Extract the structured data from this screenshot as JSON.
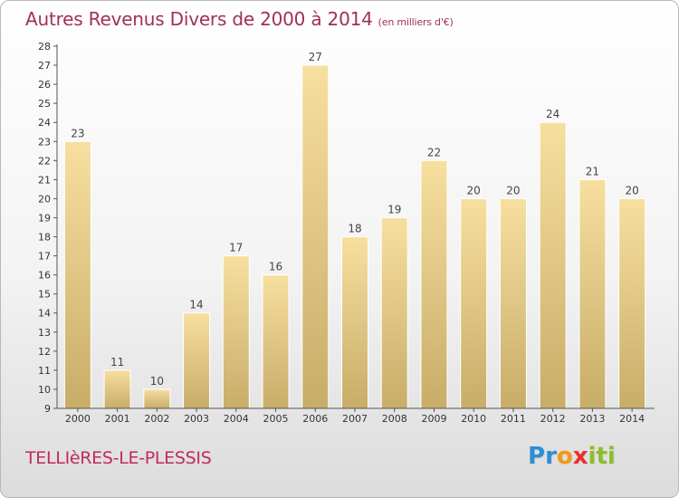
{
  "title": "Autres Revenus Divers de 2000 à 2014",
  "title_unit": "(en milliers d'€)",
  "commune": "TELLIèRES-LE-PLESSIS",
  "logo": {
    "letters": [
      "P",
      "r",
      "o",
      "x",
      "i",
      "t",
      "i"
    ],
    "colors": [
      "#2a8fd6",
      "#2a8fd6",
      "#f29a12",
      "#e8302a",
      "#8cbf26",
      "#8cbf26",
      "#8cbf26"
    ]
  },
  "colors": {
    "bar_top": "#f7dfa0",
    "bar_bottom": "#c8ad68",
    "title": "#a03058",
    "commune": "#c02c5a"
  },
  "chart_data": {
    "type": "bar",
    "title": "Autres Revenus Divers de 2000 à 2014",
    "categories": [
      "2000",
      "2001",
      "2002",
      "2003",
      "2004",
      "2005",
      "2006",
      "2007",
      "2008",
      "2009",
      "2010",
      "2011",
      "2012",
      "2013",
      "2014"
    ],
    "values": [
      23,
      11,
      10,
      14,
      17,
      16,
      27,
      18,
      19,
      22,
      20,
      20,
      24,
      21,
      20
    ],
    "ylim": [
      9,
      28
    ],
    "yticks": [
      9,
      10,
      11,
      12,
      13,
      14,
      15,
      16,
      17,
      18,
      19,
      20,
      21,
      22,
      23,
      24,
      25,
      26,
      27,
      28
    ],
    "xlabel": "",
    "ylabel": "",
    "grid": false,
    "legend": "none"
  }
}
